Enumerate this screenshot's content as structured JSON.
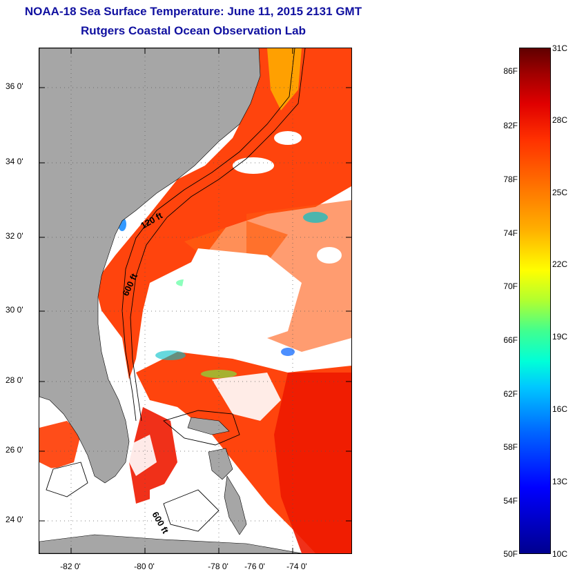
{
  "header": {
    "title": "NOAA-18 Sea Surface Temperature:  June 11, 2015 2131 GMT",
    "subtitle": "Rutgers Coastal Ocean Observation Lab"
  },
  "map": {
    "latitude_ticks": [
      "36 0'",
      "34 0'",
      "32 0'",
      "30 0'",
      "28 0'",
      "26 0'",
      "24 0'"
    ],
    "longitude_ticks": [
      "-82 0'",
      "-80 0'",
      "-78 0'",
      "-76 0'",
      "-74 0'"
    ],
    "contour_labels": [
      "120 ft",
      "600 ft",
      "600 ft"
    ],
    "colors": {
      "land": "#a6a6a6",
      "cloud": "#ffffff",
      "warm_water": "#ff3a00",
      "hot_water": "#ee1a00",
      "cool_patch": "#00c0c8"
    }
  },
  "colorbar": {
    "fahrenheit": [
      "86F",
      "82F",
      "78F",
      "74F",
      "70F",
      "66F",
      "62F",
      "58F",
      "54F",
      "50F"
    ],
    "celsius": [
      "31C",
      "28C",
      "25C",
      "22C",
      "19C",
      "16C",
      "13C",
      "10C"
    ]
  }
}
